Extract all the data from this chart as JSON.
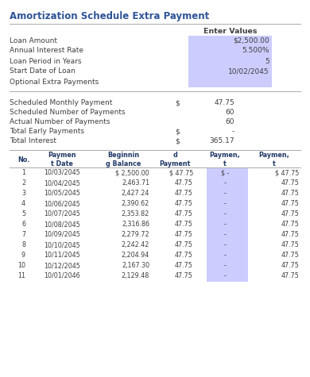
{
  "title": "Amortization Schedule Extra Payment",
  "title_color": "#2F5496",
  "bg_color": "#FFFFFF",
  "section1_label": "Enter Values",
  "section1_rows": [
    [
      "Loan Amount",
      "$2,500.00"
    ],
    [
      "Annual Interest Rate",
      "5.500%"
    ],
    [
      "Loan Period in Years",
      "5"
    ],
    [
      "Start Date of Loan",
      "10/02/2045"
    ],
    [
      "Optional Extra Payments",
      ""
    ]
  ],
  "highlight_color": "#CCCCFF",
  "section2_rows": [
    [
      "Scheduled Monthly Payment",
      "$",
      "47.75"
    ],
    [
      "Scheduled Number of Payments",
      "",
      "60"
    ],
    [
      "Actual Number of Payments",
      "",
      "60"
    ],
    [
      "Total Early Payments",
      "$",
      "-"
    ],
    [
      "Total Interest",
      "$",
      "365.17"
    ]
  ],
  "table_header_short": [
    "No.",
    "Paymen\nt Date",
    "Beginnin\ng Balance",
    "d\nPayment",
    "Paymen,\nt",
    "Paymen,\nt"
  ],
  "table_rows": [
    [
      1,
      "10/03/2045",
      "$ 2,500.00",
      "$ 47.75",
      "$ -",
      "$ 47.75"
    ],
    [
      2,
      "10/04/2045",
      "2,463.71",
      "47.75",
      "-",
      "47.75"
    ],
    [
      3,
      "10/05/2045",
      "2,427.24",
      "47.75",
      "-",
      "47.75"
    ],
    [
      4,
      "10/06/2045",
      "2,390.62",
      "47.75",
      "-",
      "47.75"
    ],
    [
      5,
      "10/07/2045",
      "2,353.82",
      "47.75",
      "-",
      "47.75"
    ],
    [
      6,
      "10/08/2045",
      "2,316.86",
      "47.75",
      "-",
      "47.75"
    ],
    [
      7,
      "10/09/2045",
      "2,279.72",
      "47.75",
      "-",
      "47.75"
    ],
    [
      8,
      "10/10/2045",
      "2,242.42",
      "47.75",
      "-",
      "47.75"
    ],
    [
      9,
      "10/11/2045",
      "2,204.94",
      "47.75",
      "-",
      "47.75"
    ],
    [
      10,
      "10/12/2045",
      "2,167.30",
      "47.75",
      "-",
      "47.75"
    ],
    [
      11,
      "10/01/2046",
      "2,129.48",
      "47.75",
      "-",
      "47.75"
    ]
  ],
  "text_color": "#404040",
  "header_bold_color": "#1F3864",
  "line_color": "#AAAAAA",
  "title_fontsize": 8.5,
  "label_fontsize": 6.5,
  "value_fontsize": 6.5,
  "tbl_fontsize": 5.8
}
